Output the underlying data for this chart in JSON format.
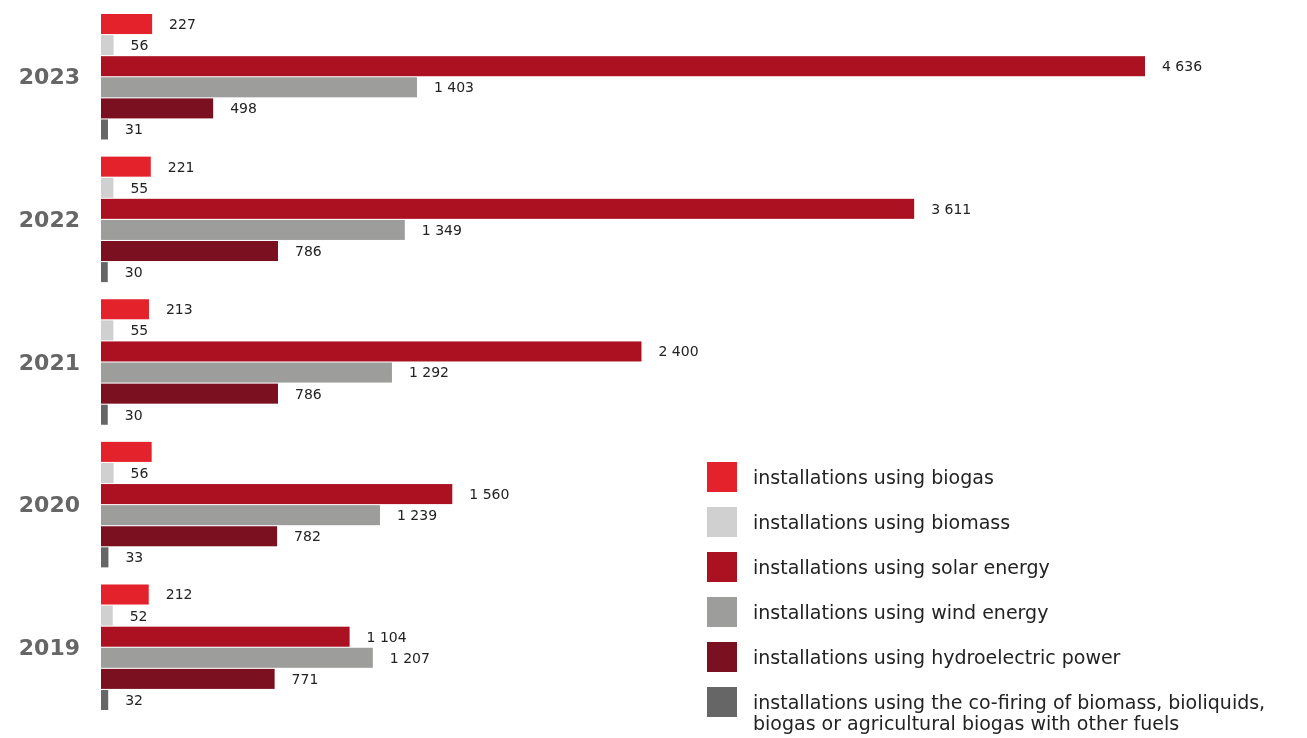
{
  "chart_data": {
    "type": "bar",
    "orientation": "horizontal",
    "categories": [
      "2023",
      "2022",
      "2021",
      "2020",
      "2019"
    ],
    "tick_labels": "y",
    "legend": "bottom right",
    "series": [
      {
        "name": "installations using biogas",
        "color": "#e4222b",
        "values": [
          227,
          221,
          213,
          225,
          212
        ],
        "value_labels": [
          "227",
          "221",
          "213",
          null,
          "212"
        ]
      },
      {
        "name": "installations using biomass",
        "color": "#d0d0d0",
        "values": [
          56,
          55,
          55,
          56,
          52
        ],
        "value_labels": [
          "56",
          "55",
          "55",
          "56",
          "52"
        ]
      },
      {
        "name": "installations using solar energy",
        "color": "#ab1121",
        "values": [
          4636,
          3611,
          2400,
          1560,
          1104
        ],
        "value_labels": [
          "4 636",
          "3 611",
          "2 400",
          "1 560",
          "1 104"
        ]
      },
      {
        "name": "installations using wind energy",
        "color": "#9d9d9c",
        "values": [
          1403,
          1349,
          1292,
          1239,
          1207
        ],
        "value_labels": [
          "1 403",
          "1 349",
          "1 292",
          "1 239",
          "1 207"
        ]
      },
      {
        "name": "installations using hydroelectric power",
        "color": "#7b1020",
        "values": [
          498,
          786,
          786,
          782,
          771
        ],
        "value_labels": [
          "498",
          "786",
          "786",
          "782",
          "771"
        ]
      },
      {
        "name": "installations using the co-firing of biomass, bioliquids, biogas or agricultural biogas with other fuels",
        "color": "#666666",
        "values": [
          31,
          30,
          30,
          33,
          32
        ],
        "value_labels": [
          "31",
          "30",
          "30",
          "33",
          "32"
        ]
      }
    ]
  }
}
